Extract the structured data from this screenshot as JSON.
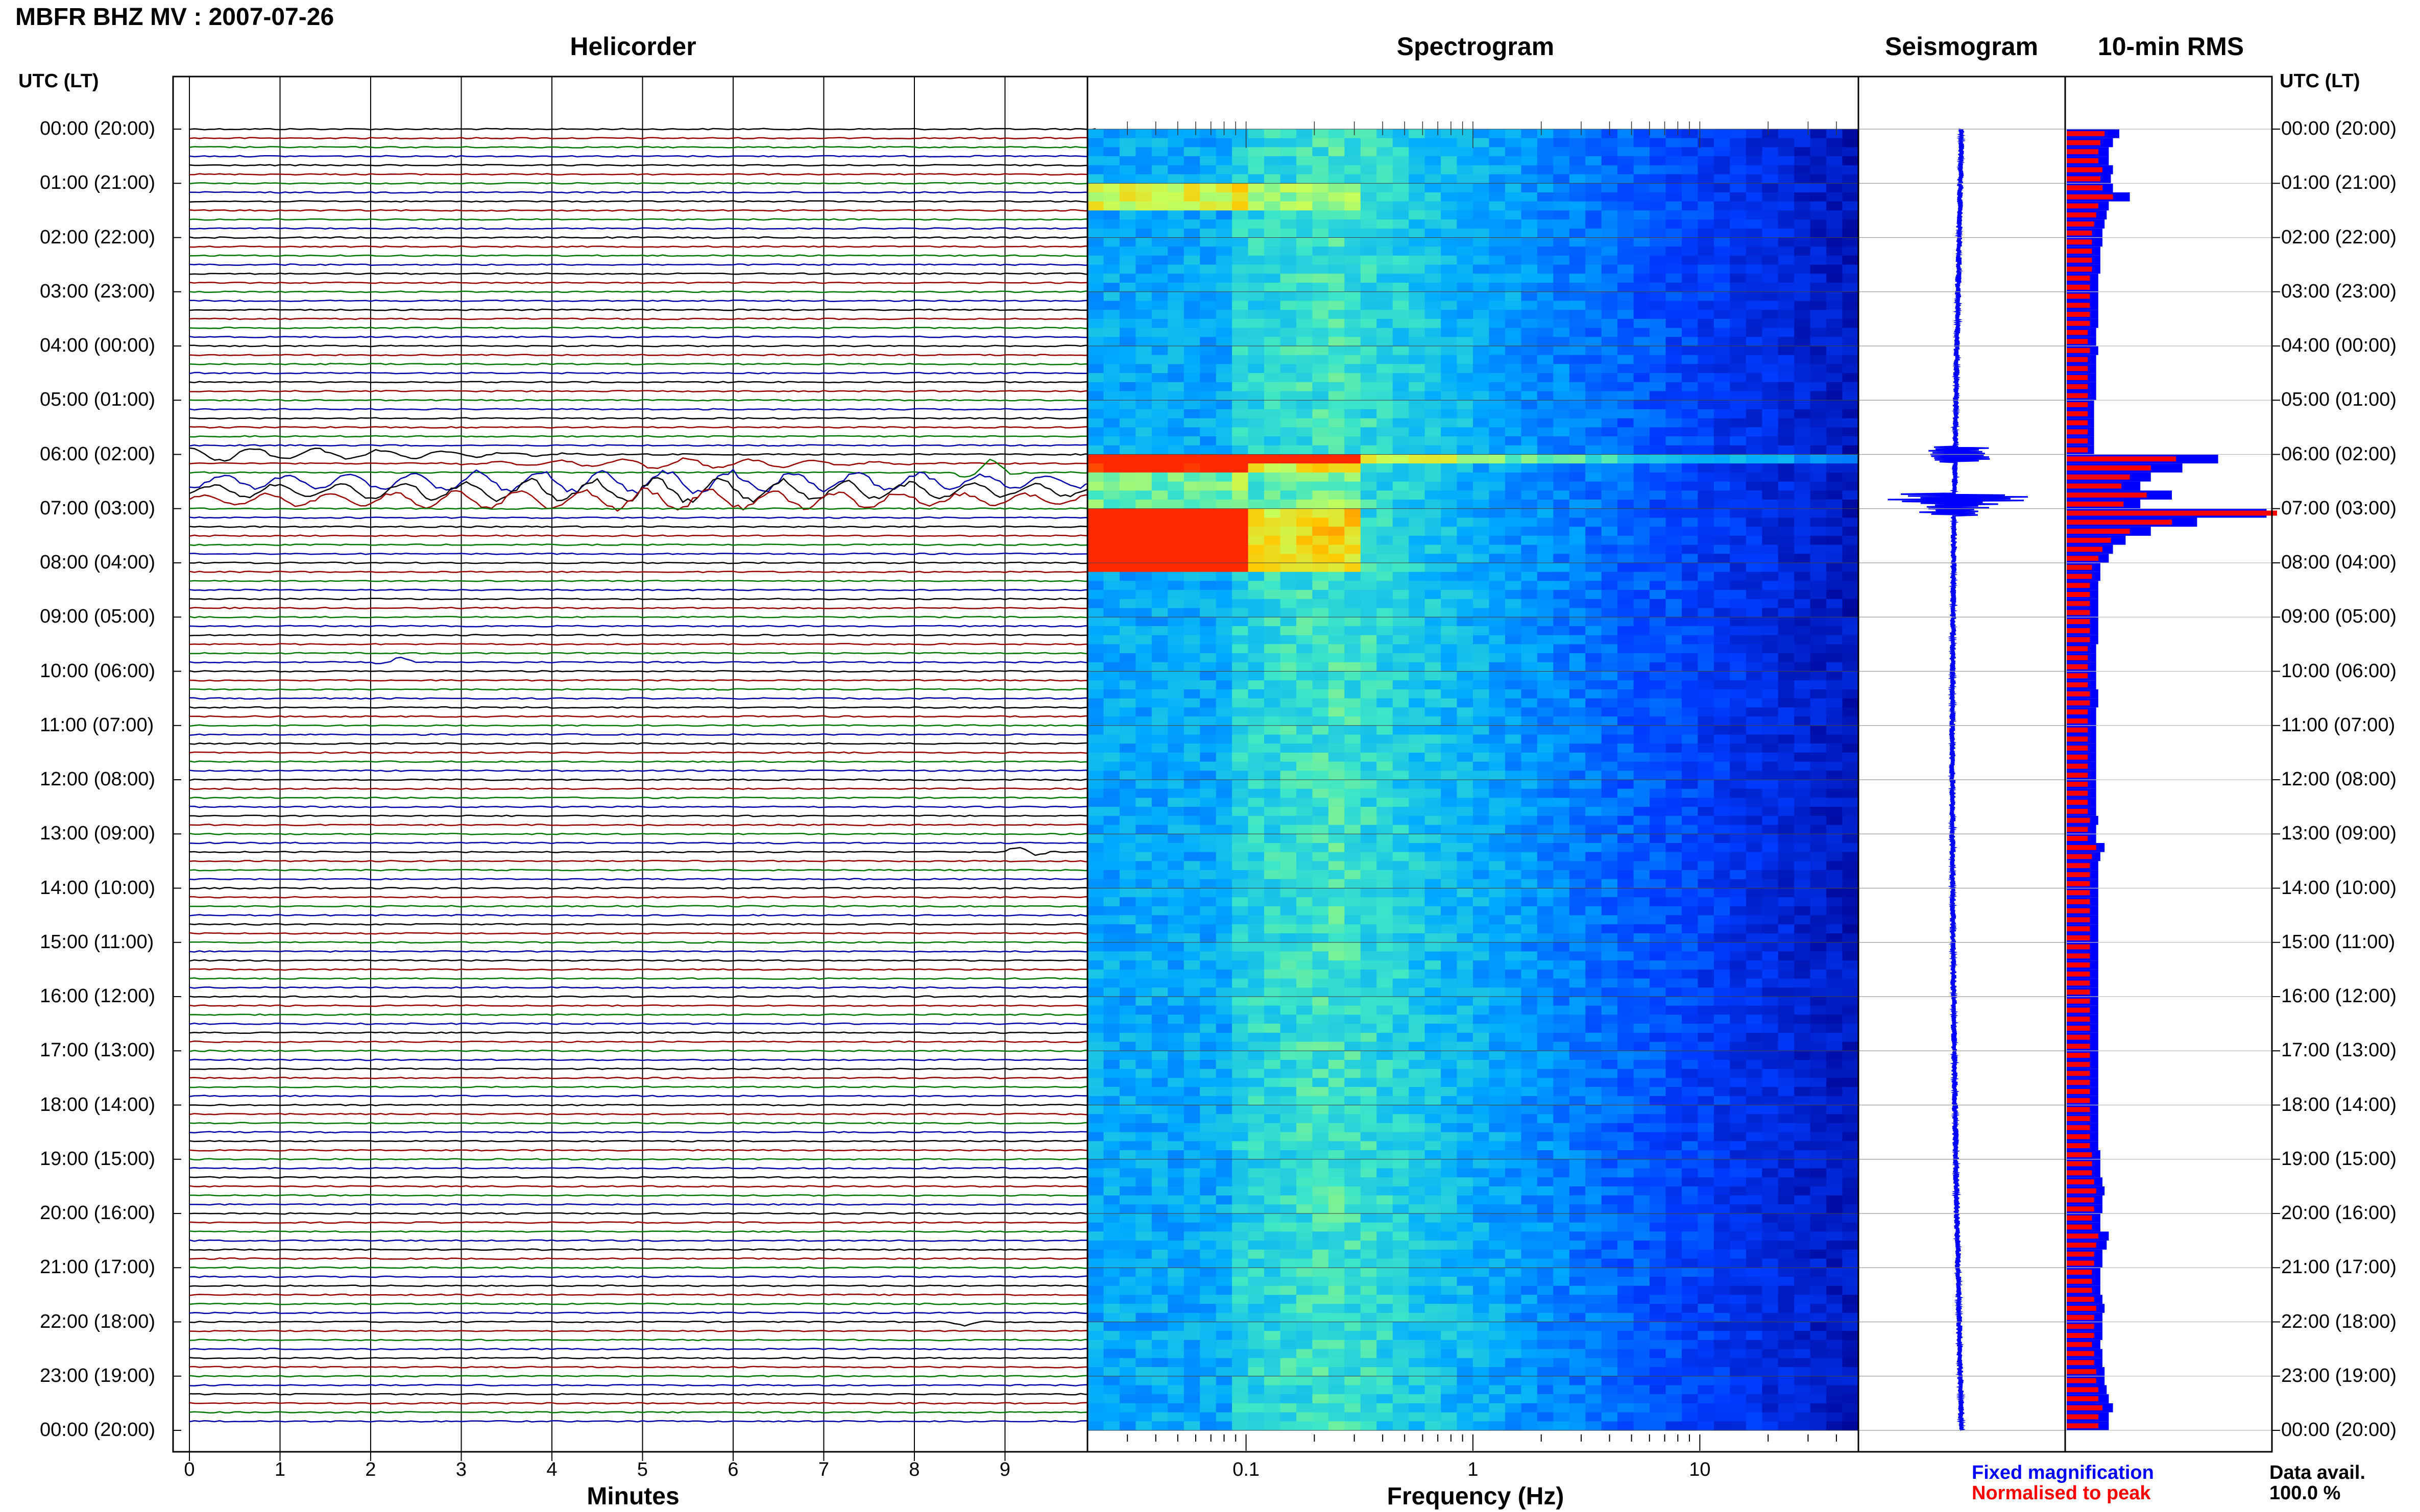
{
  "title": "MBFR BHZ MV : 2007-07-26",
  "panels": {
    "helicorder": "Helicorder",
    "spectrogram": "Spectrogram",
    "seismogram": "Seismogram",
    "rms": "10-min RMS"
  },
  "time_axis_header": "UTC (LT)",
  "time_labels": [
    "00:00 (20:00)",
    "01:00 (21:00)",
    "02:00 (22:00)",
    "03:00 (23:00)",
    "04:00 (00:00)",
    "05:00 (01:00)",
    "06:00 (02:00)",
    "07:00 (03:00)",
    "08:00 (04:00)",
    "09:00 (05:00)",
    "10:00 (06:00)",
    "11:00 (07:00)",
    "12:00 (08:00)",
    "13:00 (09:00)",
    "14:00 (10:00)",
    "15:00 (11:00)",
    "16:00 (12:00)",
    "17:00 (13:00)",
    "18:00 (14:00)",
    "19:00 (15:00)",
    "20:00 (16:00)",
    "21:00 (17:00)",
    "22:00 (18:00)",
    "23:00 (19:00)",
    "00:00 (20:00)"
  ],
  "legend": {
    "fixed": "Fixed magnification",
    "normalised": "Normalised to peak",
    "data_avail_label": "Data avail.",
    "data_avail_value": "100.0 %"
  },
  "colors": {
    "helicorder_traces": [
      "#000000",
      "#990000",
      "#007700",
      "#0000aa"
    ],
    "rms_fixed": "#0000ff",
    "rms_normalised": "#ff0000",
    "seismogram": "#0000ff"
  },
  "chart_data": [
    {
      "type": "line",
      "name": "helicorder",
      "xlabel": "Minutes",
      "x_ticks": [
        0,
        1,
        2,
        3,
        4,
        5,
        6,
        7,
        8,
        9
      ],
      "xlim": [
        0,
        10
      ],
      "rows": 144,
      "row_minutes": 10,
      "events": [
        {
          "row": 36,
          "minute": 0.3,
          "amp": 0.8,
          "width": 4.5
        },
        {
          "row": 37,
          "minute": 5.5,
          "amp": 0.6,
          "width": 3
        },
        {
          "row": 38,
          "minute": 8.8,
          "amp": 1.5,
          "width": 0.4
        },
        {
          "row": 39,
          "minute": 5.0,
          "amp": 1.4,
          "width": 9
        },
        {
          "row": 40,
          "minute": 5.0,
          "amp": 1.4,
          "width": 9
        },
        {
          "row": 41,
          "minute": 5.0,
          "amp": 1.2,
          "width": 9
        },
        {
          "row": 59,
          "minute": 2.3,
          "amp": 0.6,
          "width": 0.3
        },
        {
          "row": 80,
          "minute": 9.2,
          "amp": 0.7,
          "width": 0.3
        },
        {
          "row": 132,
          "minute": 8.6,
          "amp": 0.5,
          "width": 0.3
        }
      ]
    },
    {
      "type": "heatmap",
      "name": "spectrogram",
      "xlabel": "Frequency (Hz)",
      "x_scale": "log",
      "xlim": [
        0.02,
        50
      ],
      "x_ticks": [
        0.1,
        1,
        10
      ],
      "x_ticklabels": [
        "0.1",
        "1",
        "10"
      ],
      "high_energy_times_utc": [
        "00:50-01:20",
        "06:00-06:15",
        "07:00-08:10"
      ]
    },
    {
      "type": "line",
      "name": "seismogram",
      "description_values": {
        "peak_times_utc": [
          "06:00",
          "07:00"
        ]
      }
    },
    {
      "type": "bar",
      "name": "10-min RMS",
      "orientation": "horizontal",
      "interval_minutes": 10,
      "series": [
        {
          "name": "Fixed magnification",
          "values": [
            0.25,
            0.22,
            0.2,
            0.2,
            0.22,
            0.21,
            0.22,
            0.3,
            0.2,
            0.19,
            0.18,
            0.17,
            0.17,
            0.16,
            0.16,
            0.16,
            0.15,
            0.15,
            0.15,
            0.15,
            0.15,
            0.15,
            0.14,
            0.14,
            0.15,
            0.14,
            0.14,
            0.14,
            0.14,
            0.14,
            0.13,
            0.13,
            0.13,
            0.13,
            0.13,
            0.13,
            0.72,
            0.55,
            0.4,
            0.35,
            0.5,
            0.35,
            0.95,
            0.62,
            0.4,
            0.28,
            0.22,
            0.2,
            0.16,
            0.16,
            0.15,
            0.15,
            0.15,
            0.15,
            0.15,
            0.15,
            0.15,
            0.14,
            0.14,
            0.14,
            0.14,
            0.14,
            0.15,
            0.15,
            0.14,
            0.14,
            0.14,
            0.14,
            0.14,
            0.14,
            0.14,
            0.14,
            0.14,
            0.14,
            0.14,
            0.14,
            0.15,
            0.14,
            0.14,
            0.18,
            0.16,
            0.15,
            0.15,
            0.15,
            0.15,
            0.15,
            0.15,
            0.15,
            0.15,
            0.15,
            0.15,
            0.15,
            0.15,
            0.15,
            0.15,
            0.15,
            0.15,
            0.15,
            0.15,
            0.15,
            0.15,
            0.15,
            0.15,
            0.15,
            0.15,
            0.15,
            0.15,
            0.15,
            0.15,
            0.15,
            0.15,
            0.15,
            0.15,
            0.16,
            0.16,
            0.16,
            0.17,
            0.18,
            0.17,
            0.17,
            0.16,
            0.16,
            0.2,
            0.19,
            0.17,
            0.17,
            0.16,
            0.16,
            0.16,
            0.17,
            0.18,
            0.17,
            0.17,
            0.17,
            0.16,
            0.17,
            0.17,
            0.18,
            0.18,
            0.19,
            0.2,
            0.22,
            0.2,
            0.2
          ]
        },
        {
          "name": "Normalised to peak",
          "values": [
            0.18,
            0.16,
            0.15,
            0.15,
            0.17,
            0.16,
            0.17,
            0.22,
            0.15,
            0.14,
            0.13,
            0.12,
            0.12,
            0.12,
            0.12,
            0.12,
            0.11,
            0.11,
            0.11,
            0.11,
            0.11,
            0.11,
            0.1,
            0.1,
            0.11,
            0.1,
            0.1,
            0.1,
            0.1,
            0.1,
            0.1,
            0.1,
            0.1,
            0.1,
            0.1,
            0.1,
            0.52,
            0.4,
            0.3,
            0.26,
            0.38,
            0.27,
            1.0,
            0.5,
            0.3,
            0.21,
            0.17,
            0.15,
            0.12,
            0.12,
            0.11,
            0.11,
            0.11,
            0.11,
            0.11,
            0.11,
            0.11,
            0.1,
            0.1,
            0.1,
            0.1,
            0.1,
            0.11,
            0.11,
            0.1,
            0.1,
            0.1,
            0.1,
            0.1,
            0.1,
            0.1,
            0.1,
            0.1,
            0.1,
            0.1,
            0.1,
            0.11,
            0.1,
            0.1,
            0.14,
            0.12,
            0.11,
            0.11,
            0.11,
            0.11,
            0.11,
            0.11,
            0.11,
            0.11,
            0.11,
            0.11,
            0.11,
            0.11,
            0.11,
            0.11,
            0.11,
            0.11,
            0.11,
            0.11,
            0.11,
            0.11,
            0.11,
            0.11,
            0.11,
            0.11,
            0.11,
            0.11,
            0.11,
            0.11,
            0.11,
            0.11,
            0.11,
            0.11,
            0.12,
            0.12,
            0.12,
            0.13,
            0.14,
            0.13,
            0.13,
            0.12,
            0.12,
            0.15,
            0.14,
            0.13,
            0.13,
            0.12,
            0.12,
            0.12,
            0.13,
            0.14,
            0.13,
            0.13,
            0.13,
            0.12,
            0.13,
            0.13,
            0.14,
            0.14,
            0.15,
            0.15,
            0.17,
            0.15,
            0.15
          ]
        }
      ]
    }
  ]
}
